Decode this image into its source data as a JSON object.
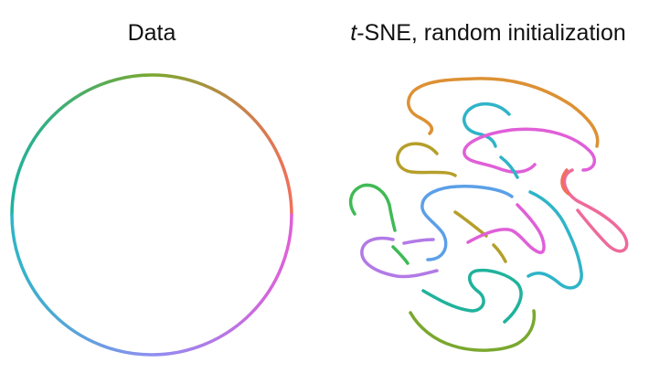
{
  "titles": {
    "left": "Data",
    "right_italic": "t",
    "right_rest": "-SNE, random initialization"
  },
  "colors": {
    "green": "#7aa82f",
    "teal": "#20b29c",
    "cyan": "#2fb4c8",
    "blue": "#5b9fe8",
    "lavender": "#b27ae6",
    "magenta": "#e05fd8",
    "pink": "#ef6a9b",
    "coral": "#f0705a",
    "orange": "#dd9134",
    "olive": "#b59f2a",
    "mid_green": "#3fba55"
  }
}
